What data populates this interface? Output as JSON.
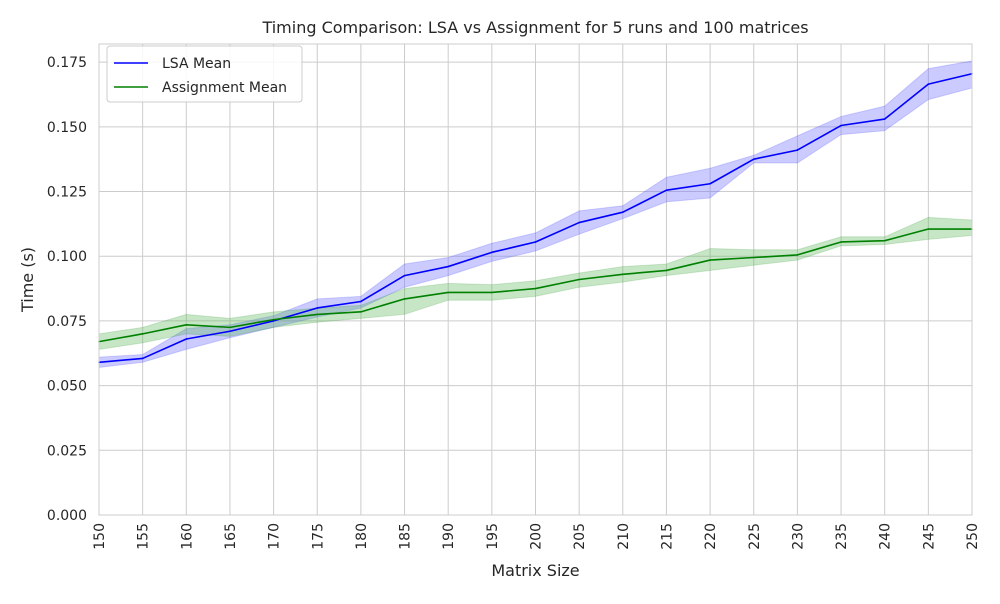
{
  "chart_data": {
    "type": "line",
    "title": "Timing Comparison: LSA vs Assignment for 5 runs and 100 matrices",
    "xlabel": "Matrix Size",
    "ylabel": "Time (s)",
    "x": [
      150,
      155,
      160,
      165,
      170,
      175,
      180,
      185,
      190,
      195,
      200,
      205,
      210,
      215,
      220,
      225,
      230,
      235,
      240,
      245,
      250
    ],
    "xlim": [
      150,
      250
    ],
    "ylim": [
      0,
      0.182
    ],
    "yticks": [
      0.0,
      0.025,
      0.05,
      0.075,
      0.1,
      0.125,
      0.15,
      0.175
    ],
    "ytick_labels": [
      "0.000",
      "0.025",
      "0.050",
      "0.075",
      "0.100",
      "0.125",
      "0.150",
      "0.175"
    ],
    "grid": true,
    "legend_position": "top-left",
    "series": [
      {
        "name": "LSA Mean",
        "color": "#0000ff",
        "band_color": "#6b6bff",
        "values": [
          0.059,
          0.0605,
          0.068,
          0.071,
          0.075,
          0.08,
          0.0825,
          0.0925,
          0.096,
          0.1015,
          0.1055,
          0.113,
          0.117,
          0.1255,
          0.128,
          0.1375,
          0.141,
          0.1505,
          0.153,
          0.1665,
          0.1705
        ],
        "lower": [
          0.057,
          0.059,
          0.064,
          0.0685,
          0.0725,
          0.0765,
          0.08,
          0.088,
          0.0925,
          0.098,
          0.102,
          0.1085,
          0.1145,
          0.121,
          0.1225,
          0.136,
          0.136,
          0.147,
          0.1485,
          0.1605,
          0.165
        ],
        "upper": [
          0.061,
          0.062,
          0.072,
          0.0735,
          0.077,
          0.0835,
          0.0845,
          0.097,
          0.0995,
          0.105,
          0.109,
          0.1175,
          0.1195,
          0.1305,
          0.134,
          0.139,
          0.1465,
          0.154,
          0.158,
          0.1725,
          0.1755
        ]
      },
      {
        "name": "Assignment Mean",
        "color": "#008000",
        "band_color": "#5cb85c",
        "values": [
          0.067,
          0.07,
          0.0735,
          0.0725,
          0.0755,
          0.0775,
          0.0785,
          0.0835,
          0.086,
          0.086,
          0.0875,
          0.091,
          0.093,
          0.0945,
          0.0985,
          0.0995,
          0.1005,
          0.1055,
          0.106,
          0.1105,
          0.1105
        ],
        "lower": [
          0.064,
          0.0665,
          0.07,
          0.069,
          0.0725,
          0.0745,
          0.076,
          0.0775,
          0.083,
          0.083,
          0.0845,
          0.088,
          0.09,
          0.0925,
          0.0945,
          0.0965,
          0.0985,
          0.104,
          0.1045,
          0.1065,
          0.108
        ],
        "upper": [
          0.07,
          0.0725,
          0.0775,
          0.076,
          0.0785,
          0.08,
          0.081,
          0.0875,
          0.0895,
          0.089,
          0.0905,
          0.0935,
          0.096,
          0.097,
          0.103,
          0.1025,
          0.1025,
          0.1075,
          0.1075,
          0.115,
          0.114
        ]
      }
    ]
  }
}
